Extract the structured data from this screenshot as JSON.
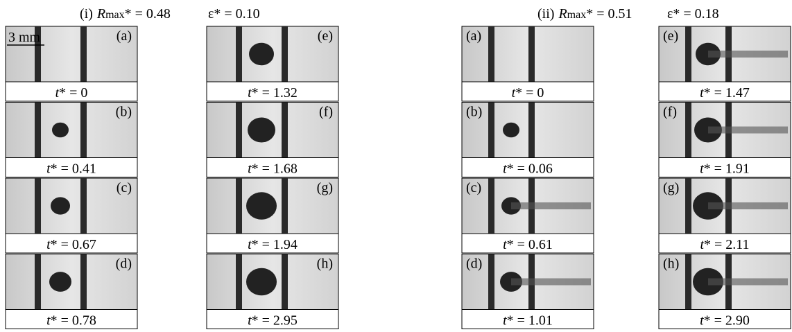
{
  "panels": [
    {
      "heading": {
        "number": "(i)",
        "r_symbol": "R",
        "r_subscript": "max",
        "r_value": "* = 0.48",
        "epsilon": "ε* = 0.10"
      },
      "scale_bar": "3 mm",
      "columns": [
        [
          {
            "letter": "(a)",
            "t_symbol": "t",
            "t_value": "* = 0"
          },
          {
            "letter": "(b)",
            "t_symbol": "t",
            "t_value": "* = 0.41"
          },
          {
            "letter": "(c)",
            "t_symbol": "t",
            "t_value": "* = 0.67"
          },
          {
            "letter": "(d)",
            "t_symbol": "t",
            "t_value": "* = 0.78"
          }
        ],
        [
          {
            "letter": "(e)",
            "t_symbol": "t",
            "t_value": "* = 1.32"
          },
          {
            "letter": "(f)",
            "t_symbol": "t",
            "t_value": "* = 1.68"
          },
          {
            "letter": "(g)",
            "t_symbol": "t",
            "t_value": "* = 1.94"
          },
          {
            "letter": "(h)",
            "t_symbol": "t",
            "t_value": "* = 2.95"
          }
        ]
      ]
    },
    {
      "heading": {
        "number": "(ii)",
        "r_symbol": "R",
        "r_subscript": "max",
        "r_value": "* = 0.51",
        "epsilon": "ε* = 0.18"
      },
      "columns": [
        [
          {
            "letter": "(a)",
            "t_symbol": "t",
            "t_value": "* = 0"
          },
          {
            "letter": "(b)",
            "t_symbol": "t",
            "t_value": "* = 0.06"
          },
          {
            "letter": "(c)",
            "t_symbol": "t",
            "t_value": "* = 0.61"
          },
          {
            "letter": "(d)",
            "t_symbol": "t",
            "t_value": "* = 1.01"
          }
        ],
        [
          {
            "letter": "(e)",
            "t_symbol": "t",
            "t_value": "* = 1.47"
          },
          {
            "letter": "(f)",
            "t_symbol": "t",
            "t_value": "* = 1.91"
          },
          {
            "letter": "(g)",
            "t_symbol": "t",
            "t_value": "* = 2.11"
          },
          {
            "letter": "(h)",
            "t_symbol": "t",
            "t_value": "* = 2.90"
          }
        ]
      ]
    }
  ]
}
